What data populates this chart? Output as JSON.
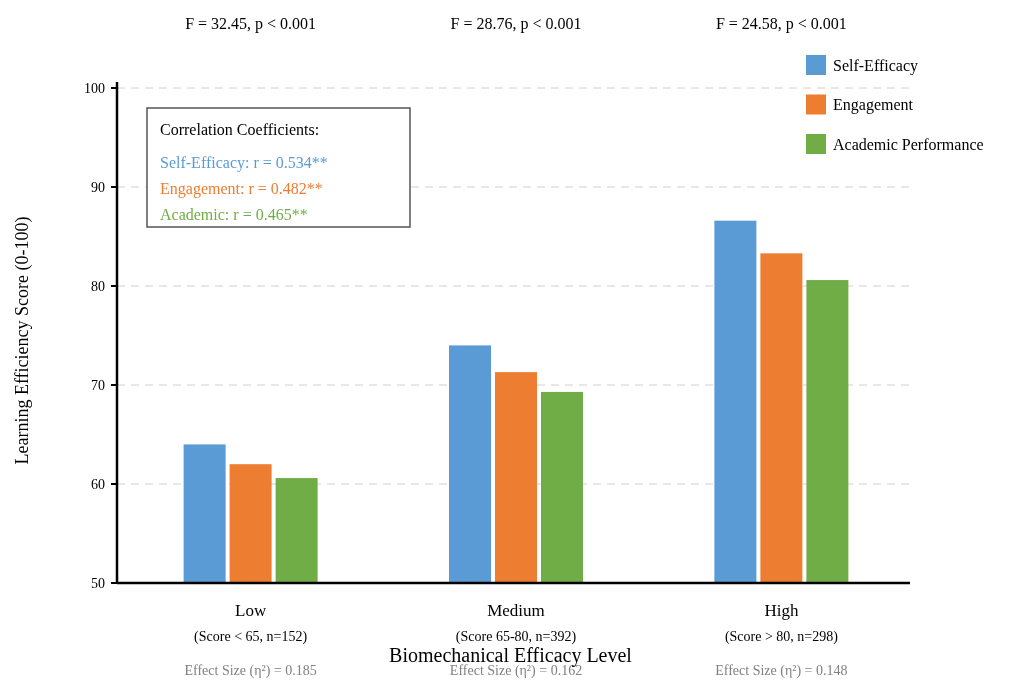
{
  "chart_data": {
    "type": "bar",
    "xlabel": "Biomechanical Efficacy Level",
    "ylabel": "Learning Efficiency Score (0-100)",
    "categories": [
      "Low",
      "Medium",
      "High"
    ],
    "series": [
      {
        "name": "Self-Efficacy",
        "color": "#5b9bd5",
        "values": [
          64.0,
          74.0,
          86.6
        ]
      },
      {
        "name": "Engagement",
        "color": "#ed7d31",
        "values": [
          62.0,
          71.3,
          83.3
        ]
      },
      {
        "name": "Academic Performance",
        "color": "#70ad47",
        "values": [
          60.6,
          69.3,
          80.6
        ]
      }
    ],
    "ylim": [
      50,
      100
    ],
    "yticks": [
      50,
      60,
      70,
      80,
      90,
      100
    ],
    "grid": "y",
    "legend": "top right",
    "annotations": [
      "F = 32.45, p < 0.001",
      "F = 28.76, p < 0.001",
      "F = 24.58, p < 0.001",
      "(Score < 65, n=152)",
      "(Score 65-80, n=392)",
      "(Score > 80, n=298)",
      "Effect Size (η²) = 0.185",
      "Effect Size (η²) = 0.162",
      "Effect Size (η²) = 0.148",
      "Correlation Coefficients:",
      "Self-Efficacy: r = 0.534**",
      "Engagement: r = 0.482**",
      "Academic: r = 0.465**"
    ]
  }
}
